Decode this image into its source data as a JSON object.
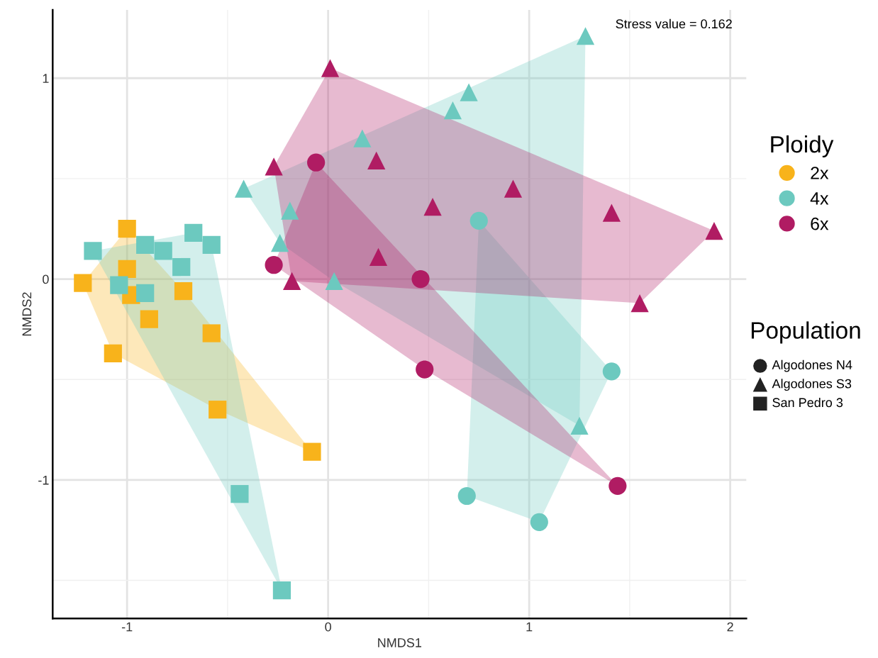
{
  "chart_data": {
    "type": "scatter",
    "xlabel": "NMDS1",
    "ylabel": "NMDS2",
    "legend_title": [
      "Ploidy",
      "Population"
    ],
    "annotations": [
      "Stress value = 0.162",
      "Algodones N4",
      "Algodones S3",
      "San Pedro 3"
    ],
    "xlim": [
      -1.37,
      2.08
    ],
    "ylim": [
      -1.69,
      1.34
    ],
    "xticks": [
      -1,
      0,
      1,
      2
    ],
    "yticks": [
      -1,
      0,
      1
    ],
    "grid": true,
    "legend": "right",
    "series": [
      {
        "name": "2x",
        "marker": "square",
        "color": "#f8b31b",
        "x": [
          -1.0,
          -1.22,
          -1.0,
          -0.98,
          -0.89,
          -0.72,
          -1.07,
          -0.58,
          -0.55,
          -0.08
        ],
        "values": [
          0.25,
          -0.02,
          0.05,
          -0.08,
          -0.2,
          -0.06,
          -0.37,
          -0.27,
          -0.65,
          -0.86
        ]
      },
      {
        "name": "4x",
        "marker": "square",
        "color": "#6cc9bf",
        "x": [
          -1.17,
          -0.91,
          -0.82,
          -0.67,
          -0.58,
          -0.73,
          -1.04,
          -0.91,
          -0.44,
          -0.23
        ],
        "values": [
          0.14,
          0.17,
          0.14,
          0.23,
          0.17,
          0.06,
          -0.03,
          -0.07,
          -1.07,
          -1.55
        ]
      },
      {
        "marker": "triangle",
        "color": "#6cc9bf",
        "x": [
          1.28,
          0.7,
          0.62,
          0.17,
          -0.42,
          -0.19,
          -0.24,
          0.03,
          1.25
        ],
        "values": [
          1.21,
          0.93,
          0.84,
          0.7,
          0.45,
          0.34,
          0.18,
          -0.01,
          -0.73
        ]
      },
      {
        "marker": "circle",
        "color": "#6cc9bf",
        "x": [
          0.75,
          1.41,
          0.69,
          1.05
        ],
        "values": [
          0.29,
          -0.46,
          -1.08,
          -1.21
        ]
      },
      {
        "name": "6x",
        "marker": "triangle",
        "color": "#b01c63",
        "x": [
          0.01,
          -0.27,
          0.24,
          0.92,
          0.52,
          1.41,
          1.92,
          0.25,
          -0.18,
          1.55
        ],
        "values": [
          1.05,
          0.56,
          0.59,
          0.45,
          0.36,
          0.33,
          0.24,
          0.11,
          -0.01,
          -0.12
        ]
      },
      {
        "marker": "circle",
        "color": "#b01c63",
        "x": [
          -0.06,
          -0.27,
          0.46,
          0.48,
          1.44
        ],
        "values": [
          0.58,
          0.07,
          0.0,
          -0.45,
          -1.03
        ]
      }
    ]
  }
}
